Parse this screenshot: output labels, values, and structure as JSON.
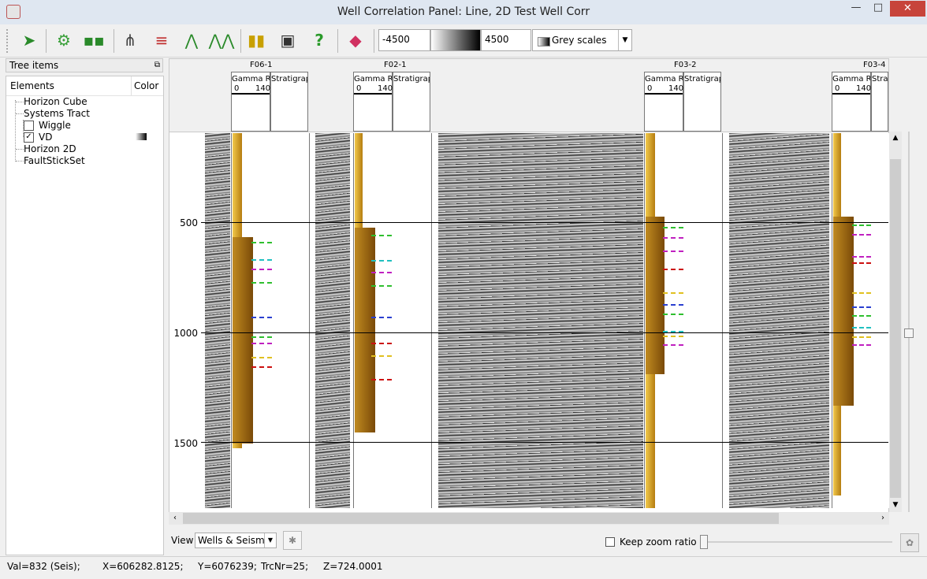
{
  "window": {
    "title": "Well Correlation Panel: Line, 2D Test Well Corr",
    "minimize": "—",
    "maximize": "□",
    "close": "✕"
  },
  "toolbar": {
    "range_min": "-4500",
    "range_max": "4500",
    "colortable": "Grey scales"
  },
  "tree": {
    "header": "Tree items",
    "col_elements": "Elements",
    "col_color": "Color",
    "items": [
      {
        "label": "Horizon Cube"
      },
      {
        "label": "Systems Tract"
      },
      {
        "label": "Wiggle",
        "checked": false
      },
      {
        "label": "VD",
        "checked": true
      },
      {
        "label": "Horizon 2D"
      },
      {
        "label": "FaultStickSet"
      }
    ]
  },
  "panel": {
    "wells": [
      {
        "name": "F06-1",
        "gr_label": "Gamma Ray",
        "strat_label": "Stratigraphy",
        "min": "0",
        "max": "140"
      },
      {
        "name": "F02-1",
        "gr_label": "Gamma Ray",
        "strat_label": "Stratigraphy",
        "min": "0",
        "max": "140"
      },
      {
        "name": "F03-2",
        "gr_label": "Gamma Ray",
        "strat_label": "Stratigraphy",
        "min": "0",
        "max": "140"
      },
      {
        "name": "F03-4",
        "gr_label": "Gamma Ray",
        "strat_label": "Stratigraphy",
        "min": "0",
        "max": "140"
      }
    ],
    "depth_ticks": [
      "500",
      "1000",
      "1500"
    ]
  },
  "bottom": {
    "view_label": "View",
    "view_value": "Wells & Seismi",
    "keep_zoom_label": "Keep zoom ratio",
    "keep_zoom_checked": false
  },
  "status": {
    "val": "Val=832 (Seis);",
    "x": "X=606282.8125;",
    "y": "Y=6076239;",
    "trc": "TrcNr=25;",
    "z": "Z=724.0001"
  },
  "colors": {
    "marker_green": "#2fbf2f",
    "marker_blue": "#2a3fd0",
    "marker_magenta": "#c020c0",
    "marker_red": "#cc1010",
    "marker_yellow": "#e0c020",
    "marker_cyan": "#20c0c0"
  }
}
